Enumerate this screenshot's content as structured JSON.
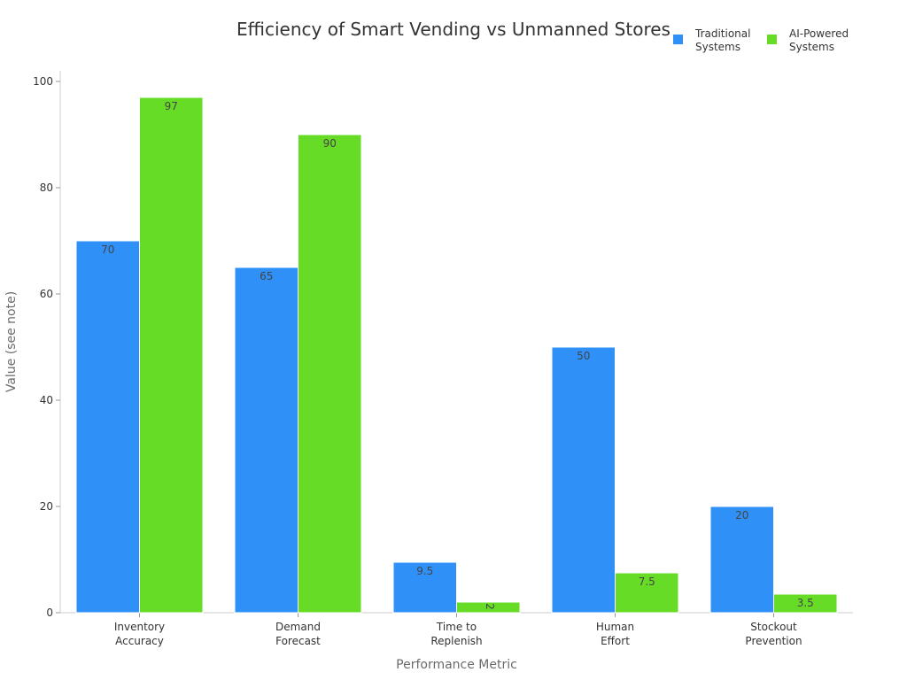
{
  "chart_data": {
    "type": "bar",
    "title": "Efficiency of Smart Vending vs Unmanned Stores",
    "xlabel": "Performance Metric",
    "ylabel": "Value (see note)",
    "categories": [
      [
        "Inventory",
        "Accuracy"
      ],
      [
        "Demand",
        "Forecast"
      ],
      [
        "Time to",
        "Replenish"
      ],
      [
        "Human",
        "Effort"
      ],
      [
        "Stockout",
        "Prevention"
      ]
    ],
    "series": [
      {
        "name": [
          "Traditional",
          "Systems"
        ],
        "color": "#2f91f7",
        "values": [
          70,
          65,
          9.5,
          50,
          20
        ]
      },
      {
        "name": [
          "AI-Powered",
          "Systems"
        ],
        "color": "#66dc27",
        "values": [
          97,
          90,
          2,
          7.5,
          3.5
        ]
      }
    ],
    "ylim": [
      0,
      102
    ],
    "yticks": [
      0,
      20,
      40,
      60,
      80,
      100
    ],
    "grid": false,
    "legend_position": "top-right"
  }
}
